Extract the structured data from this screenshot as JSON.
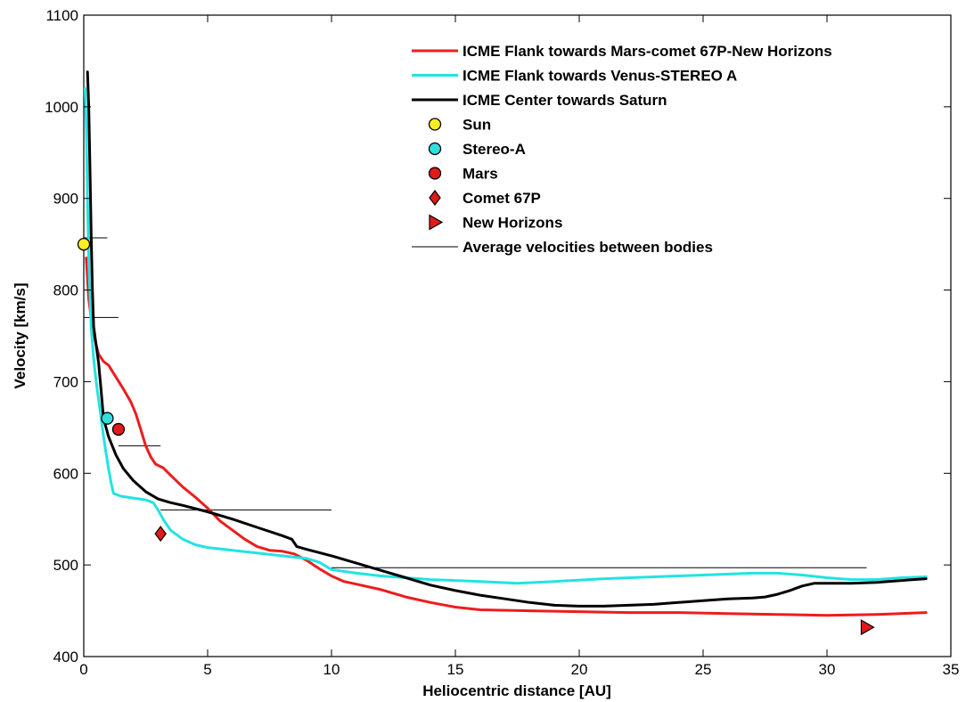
{
  "chart_data": {
    "type": "line",
    "xlabel": "Heliocentric distance [AU]",
    "ylabel": "Velocity [km/s]",
    "xlim": [
      0,
      35
    ],
    "ylim": [
      400,
      1100
    ],
    "xticks": [
      0,
      5,
      10,
      15,
      20,
      25,
      30,
      35
    ],
    "yticks": [
      400,
      500,
      600,
      700,
      800,
      900,
      1000,
      1100
    ],
    "grid": false,
    "legend_position": "top-right",
    "colors": {
      "red": "#ee1c1c",
      "cyan": "#22e3e3",
      "black": "#000000",
      "yellow": "#ffee22",
      "marker_red": "#e31a1a",
      "marker_cyan": "#33dddd"
    },
    "series": [
      {
        "name": "ICME Flank towards Mars-comet 67P-New Horizons",
        "color": "#ee1c1c",
        "x": [
          0.1,
          0.2,
          0.35,
          0.5,
          0.6,
          0.8,
          1.0,
          1.3,
          1.6,
          1.9,
          2.1,
          2.3,
          2.5,
          2.7,
          2.9,
          3.2,
          3.5,
          4.0,
          4.5,
          5.0,
          5.5,
          6.0,
          6.5,
          7.0,
          7.5,
          8.0,
          8.5,
          9.0,
          9.5,
          10.0,
          10.5,
          11.0,
          12.0,
          13.0,
          14.0,
          15.0,
          16.0,
          18.0,
          20.0,
          22.0,
          24.0,
          26.0,
          28.0,
          30.0,
          32.0,
          34.0
        ],
        "y": [
          835,
          790,
          760,
          740,
          730,
          722,
          718,
          705,
          692,
          678,
          665,
          648,
          630,
          618,
          610,
          606,
          598,
          585,
          574,
          562,
          548,
          538,
          528,
          520,
          516,
          515,
          512,
          505,
          496,
          488,
          482,
          479,
          473,
          465,
          459,
          454,
          451,
          450,
          449,
          448,
          448,
          447,
          446,
          445,
          446,
          448
        ]
      },
      {
        "name": "ICME Flank towards Venus-STEREO A",
        "color": "#22e3e3",
        "x": [
          0.05,
          0.1,
          0.15,
          0.2,
          0.3,
          0.4,
          0.5,
          0.6,
          0.7,
          0.8,
          0.9,
          1.0,
          1.1,
          1.2,
          1.5,
          2.0,
          2.5,
          2.8,
          3.0,
          3.2,
          3.5,
          4.0,
          4.5,
          5.0,
          6.0,
          7.0,
          8.0,
          9.0,
          9.5,
          10.0,
          11.0,
          12.0,
          13.0,
          14.0,
          15.0,
          16.0,
          17.5,
          19.0,
          21.0,
          23.0,
          25.0,
          27.0,
          28.0,
          29.0,
          30.0,
          31.0,
          32.0,
          33.0,
          34.0
        ],
        "y": [
          1020,
          980,
          900,
          830,
          760,
          725,
          700,
          680,
          660,
          640,
          622,
          605,
          590,
          578,
          575,
          573,
          571,
          568,
          560,
          550,
          538,
          528,
          522,
          519,
          516,
          513,
          510,
          507,
          503,
          495,
          491,
          488,
          486,
          484,
          483,
          482,
          480,
          482,
          485,
          487,
          489,
          491,
          491,
          489,
          486,
          484,
          484,
          486,
          487
        ]
      },
      {
        "name": "ICME Center towards Saturn",
        "color": "#000000",
        "x": [
          0.15,
          0.2,
          0.25,
          0.3,
          0.35,
          0.4,
          0.5,
          0.6,
          0.7,
          0.8,
          1.0,
          1.3,
          1.6,
          2.0,
          2.5,
          3.0,
          3.5,
          4.0,
          5.0,
          6.0,
          7.0,
          8.0,
          8.4,
          8.6,
          9.0,
          10.0,
          11.0,
          12.0,
          13.0,
          14.0,
          15.0,
          16.0,
          17.0,
          18.0,
          19.0,
          20.0,
          21.0,
          22.0,
          23.0,
          24.0,
          25.0,
          26.0,
          27.0,
          27.5,
          28.0,
          28.5,
          29.0,
          29.5,
          30.0,
          31.0,
          32.0,
          33.0,
          34.0
        ],
        "y": [
          1038,
          1000,
          930,
          860,
          800,
          760,
          740,
          720,
          690,
          660,
          640,
          620,
          605,
          592,
          580,
          572,
          568,
          565,
          558,
          550,
          541,
          532,
          528,
          520,
          517,
          510,
          502,
          494,
          486,
          478,
          472,
          467,
          463,
          459,
          456,
          455,
          455,
          456,
          457,
          459,
          461,
          463,
          464,
          465,
          468,
          472,
          477,
          480,
          480,
          480,
          481,
          483,
          485
        ]
      }
    ],
    "markers": [
      {
        "name": "Sun",
        "shape": "circle",
        "color": "#ffee22",
        "x": 0.0,
        "y": 850
      },
      {
        "name": "Stereo-A",
        "shape": "circle",
        "color": "#33dddd",
        "x": 0.95,
        "y": 660
      },
      {
        "name": "Mars",
        "shape": "circle",
        "color": "#e31a1a",
        "x": 1.4,
        "y": 648
      },
      {
        "name": "Comet 67P",
        "shape": "diamond",
        "color": "#e31a1a",
        "x": 3.1,
        "y": 534
      },
      {
        "name": "New Horizons",
        "shape": "triangle-right",
        "color": "#e31a1a",
        "x": 31.6,
        "y": 432
      }
    ],
    "average_lines_name": "Average velocities between bodies",
    "average_lines": [
      {
        "x0": 0.0,
        "x1": 0.95,
        "y": 857
      },
      {
        "x0": 0.0,
        "x1": 1.4,
        "y": 770
      },
      {
        "x0": 1.4,
        "x1": 3.1,
        "y": 630
      },
      {
        "x0": 3.1,
        "x1": 10.0,
        "y": 560
      },
      {
        "x0": 10.0,
        "x1": 31.6,
        "y": 497
      }
    ],
    "legend": [
      {
        "label": "ICME Flank towards Mars-comet 67P-New Horizons",
        "kind": "line",
        "color": "#ee1c1c",
        "width": 3
      },
      {
        "label": "ICME Flank towards Venus-STEREO A",
        "kind": "line",
        "color": "#22e3e3",
        "width": 3
      },
      {
        "label": "ICME Center towards Saturn",
        "kind": "line",
        "color": "#000000",
        "width": 3
      },
      {
        "label": "Sun",
        "kind": "circle",
        "color": "#ffee22"
      },
      {
        "label": "Stereo-A",
        "kind": "circle",
        "color": "#33dddd"
      },
      {
        "label": "Mars",
        "kind": "circle",
        "color": "#e31a1a"
      },
      {
        "label": "Comet 67P",
        "kind": "diamond",
        "color": "#e31a1a"
      },
      {
        "label": "New Horizons",
        "kind": "triangle-right",
        "color": "#e31a1a"
      },
      {
        "label": "Average velocities between bodies",
        "kind": "line",
        "color": "#000000",
        "width": 1
      }
    ]
  }
}
